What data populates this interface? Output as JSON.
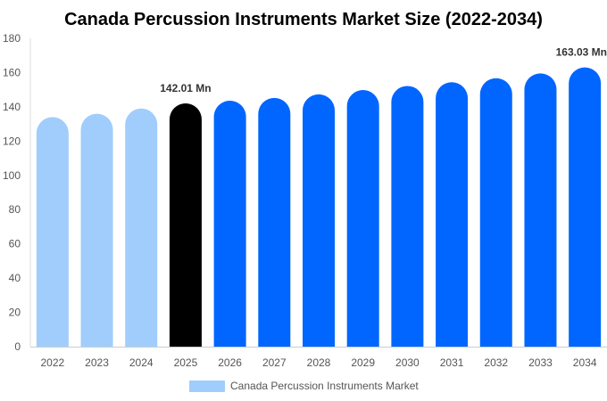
{
  "chart_data": {
    "type": "bar",
    "title": "Canada Percussion Instruments Market Size (2022-2034)",
    "categories": [
      "2022",
      "2023",
      "2024",
      "2025",
      "2026",
      "2027",
      "2028",
      "2029",
      "2030",
      "2031",
      "2032",
      "2033",
      "2034"
    ],
    "series": [
      {
        "name": "Canada Percussion Instruments Market",
        "values": [
          134.0,
          136.0,
          139.0,
          142.01,
          143.6,
          145.2,
          147.3,
          149.8,
          152.2,
          154.4,
          156.7,
          159.5,
          163.03
        ]
      }
    ],
    "ylim": [
      0,
      180
    ],
    "yticks": [
      0,
      20,
      40,
      60,
      80,
      100,
      120,
      140,
      160,
      180
    ],
    "data_labels": [
      {
        "index": 3,
        "text": "142.01 Mn"
      },
      {
        "index": 12,
        "text": "163.03 Mn"
      }
    ],
    "colors": {
      "historic": "#a0cdfc",
      "current": "#000000",
      "forecast": "#0066ff",
      "legend": "#a0cdfc"
    },
    "grid": false,
    "legend_position": "bottom"
  }
}
